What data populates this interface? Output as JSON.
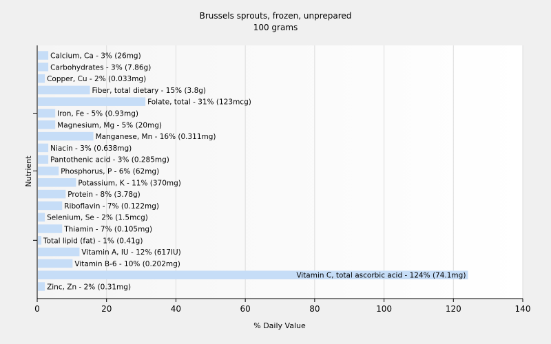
{
  "chart_data": {
    "type": "bar",
    "orientation": "horizontal",
    "title": "Brussels sprouts, frozen, unprepared",
    "subtitle": "100 grams",
    "xlabel": "% Daily Value",
    "ylabel": "Nutrient",
    "xlim": [
      0,
      140
    ],
    "xticks": [
      "0",
      "20",
      "40",
      "60",
      "80",
      "100",
      "120",
      "140"
    ],
    "grid": true,
    "bar_color": "#c6ddf7",
    "categories": [
      "Calcium, Ca",
      "Carbohydrates",
      "Copper, Cu",
      "Fiber, total dietary",
      "Folate, total",
      "Iron, Fe",
      "Magnesium, Mg",
      "Manganese, Mn",
      "Niacin",
      "Pantothenic acid",
      "Phosphorus, P",
      "Potassium, K",
      "Protein",
      "Riboflavin",
      "Selenium, Se",
      "Thiamin",
      "Total lipid (fat)",
      "Vitamin A, IU",
      "Vitamin B-6",
      "Vitamin C, total ascorbic acid",
      "Zinc, Zn"
    ],
    "values": [
      3,
      3,
      2,
      15,
      31,
      5,
      5,
      16,
      3,
      3,
      6,
      11,
      8,
      7,
      2,
      7,
      1,
      12,
      10,
      124,
      2
    ],
    "labels": [
      "Calcium, Ca - 3% (26mg)",
      "Carbohydrates - 3% (7.86g)",
      "Copper, Cu - 2% (0.033mg)",
      "Fiber, total dietary - 15% (3.8g)",
      "Folate, total - 31% (123mcg)",
      "Iron, Fe - 5% (0.93mg)",
      "Magnesium, Mg - 5% (20mg)",
      "Manganese, Mn - 16% (0.311mg)",
      "Niacin - 3% (0.638mg)",
      "Pantothenic acid - 3% (0.285mg)",
      "Phosphorus, P - 6% (62mg)",
      "Potassium, K - 11% (370mg)",
      "Protein - 8% (3.78g)",
      "Riboflavin - 7% (0.122mg)",
      "Selenium, Se - 2% (1.5mcg)",
      "Thiamin - 7% (0.105mg)",
      "Total lipid (fat) - 1% (0.41g)",
      "Vitamin A, IU - 12% (617IU)",
      "Vitamin B-6 - 10% (0.202mg)",
      "Vitamin C, total ascorbic acid - 124% (74.1mg)",
      "Zinc, Zn - 2% (0.31mg)"
    ]
  }
}
